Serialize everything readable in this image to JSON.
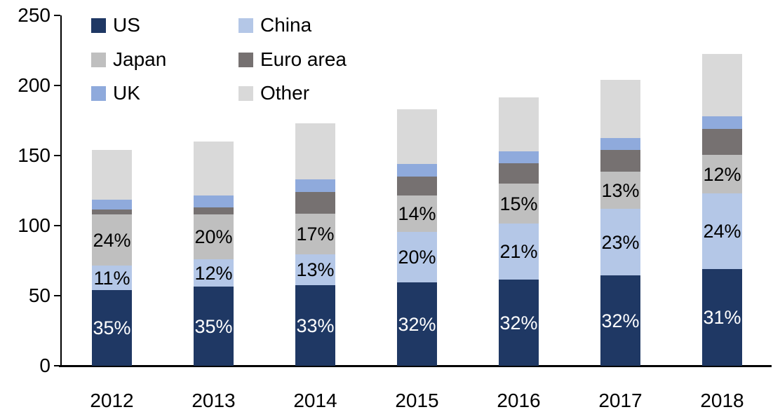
{
  "chart_data": {
    "type": "bar",
    "stacked": true,
    "title": "",
    "xlabel": "",
    "ylabel": "",
    "categories": [
      "2012",
      "2013",
      "2014",
      "2015",
      "2016",
      "2017",
      "2018"
    ],
    "series": [
      {
        "name": "US",
        "color": "#1f3864",
        "label_color": "#ffffff",
        "values": [
          54,
          56.5,
          57.5,
          59.5,
          61.5,
          64.5,
          69
        ],
        "labels": [
          "35%",
          "35%",
          "33%",
          "32%",
          "32%",
          "32%",
          "31%"
        ]
      },
      {
        "name": "China",
        "color": "#b4c7e7",
        "label_color": "#000000",
        "values": [
          17.5,
          19.5,
          22,
          36,
          40,
          47.5,
          54
        ],
        "labels": [
          "11%",
          "12%",
          "13%",
          "20%",
          "21%",
          "23%",
          "24%"
        ]
      },
      {
        "name": "Japan",
        "color": "#bfbfbf",
        "label_color": "#000000",
        "values": [
          36.5,
          32,
          29,
          26,
          28.5,
          26.5,
          27.5
        ],
        "labels": [
          "24%",
          "20%",
          "17%",
          "14%",
          "15%",
          "13%",
          "12%"
        ]
      },
      {
        "name": "Euro area",
        "color": "#767171",
        "values": [
          3.5,
          5,
          15.5,
          13.5,
          14.5,
          15.5,
          18.5
        ]
      },
      {
        "name": "UK",
        "color": "#8faadc",
        "values": [
          7,
          8.5,
          9,
          9,
          8.5,
          8.5,
          9
        ]
      },
      {
        "name": "Other",
        "color": "#d9d9d9",
        "values": [
          35.5,
          38.5,
          40,
          39,
          38.5,
          41.5,
          44.5
        ]
      }
    ],
    "totals": [
      154,
      160,
      173,
      183,
      191.5,
      204,
      222.5
    ],
    "ylim": [
      0,
      250
    ],
    "yticks": [
      0,
      50,
      100,
      150,
      200,
      250
    ],
    "grid": false,
    "legend_position": "top-left",
    "legend_order": [
      "US",
      "China",
      "Japan",
      "Euro area",
      "UK",
      "Other"
    ],
    "axis_color": "#000000",
    "background_color": "#ffffff"
  }
}
